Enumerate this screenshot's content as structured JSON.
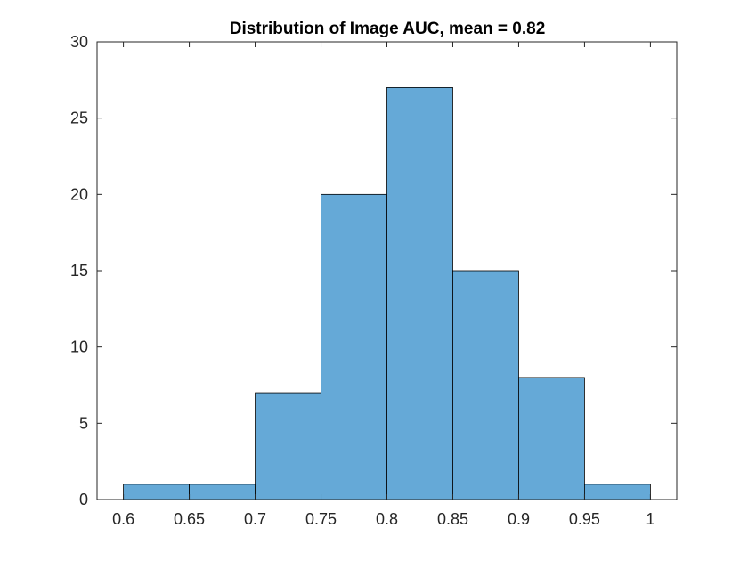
{
  "chart_data": {
    "type": "bar",
    "title": "Distribution of Image AUC, mean = 0.82",
    "xlabel": "",
    "ylabel": "",
    "bin_edges": [
      0.6,
      0.65,
      0.7,
      0.75,
      0.8,
      0.85,
      0.9,
      0.95,
      1.0
    ],
    "counts": [
      1,
      1,
      7,
      20,
      27,
      15,
      8,
      1
    ],
    "xlim": [
      0.58,
      1.02
    ],
    "ylim": [
      0,
      30
    ],
    "xticks": [
      0.6,
      0.65,
      0.7,
      0.75,
      0.8,
      0.85,
      0.9,
      0.95,
      1
    ],
    "xtick_labels": [
      "0.6",
      "0.65",
      "0.7",
      "0.75",
      "0.8",
      "0.85",
      "0.9",
      "0.95",
      "1"
    ],
    "yticks": [
      0,
      5,
      10,
      15,
      20,
      25,
      30
    ],
    "ytick_labels": [
      "0",
      "5",
      "10",
      "15",
      "20",
      "25",
      "30"
    ],
    "bar_color": "#65a9d7",
    "edge_color": "#000000",
    "grid": false
  }
}
